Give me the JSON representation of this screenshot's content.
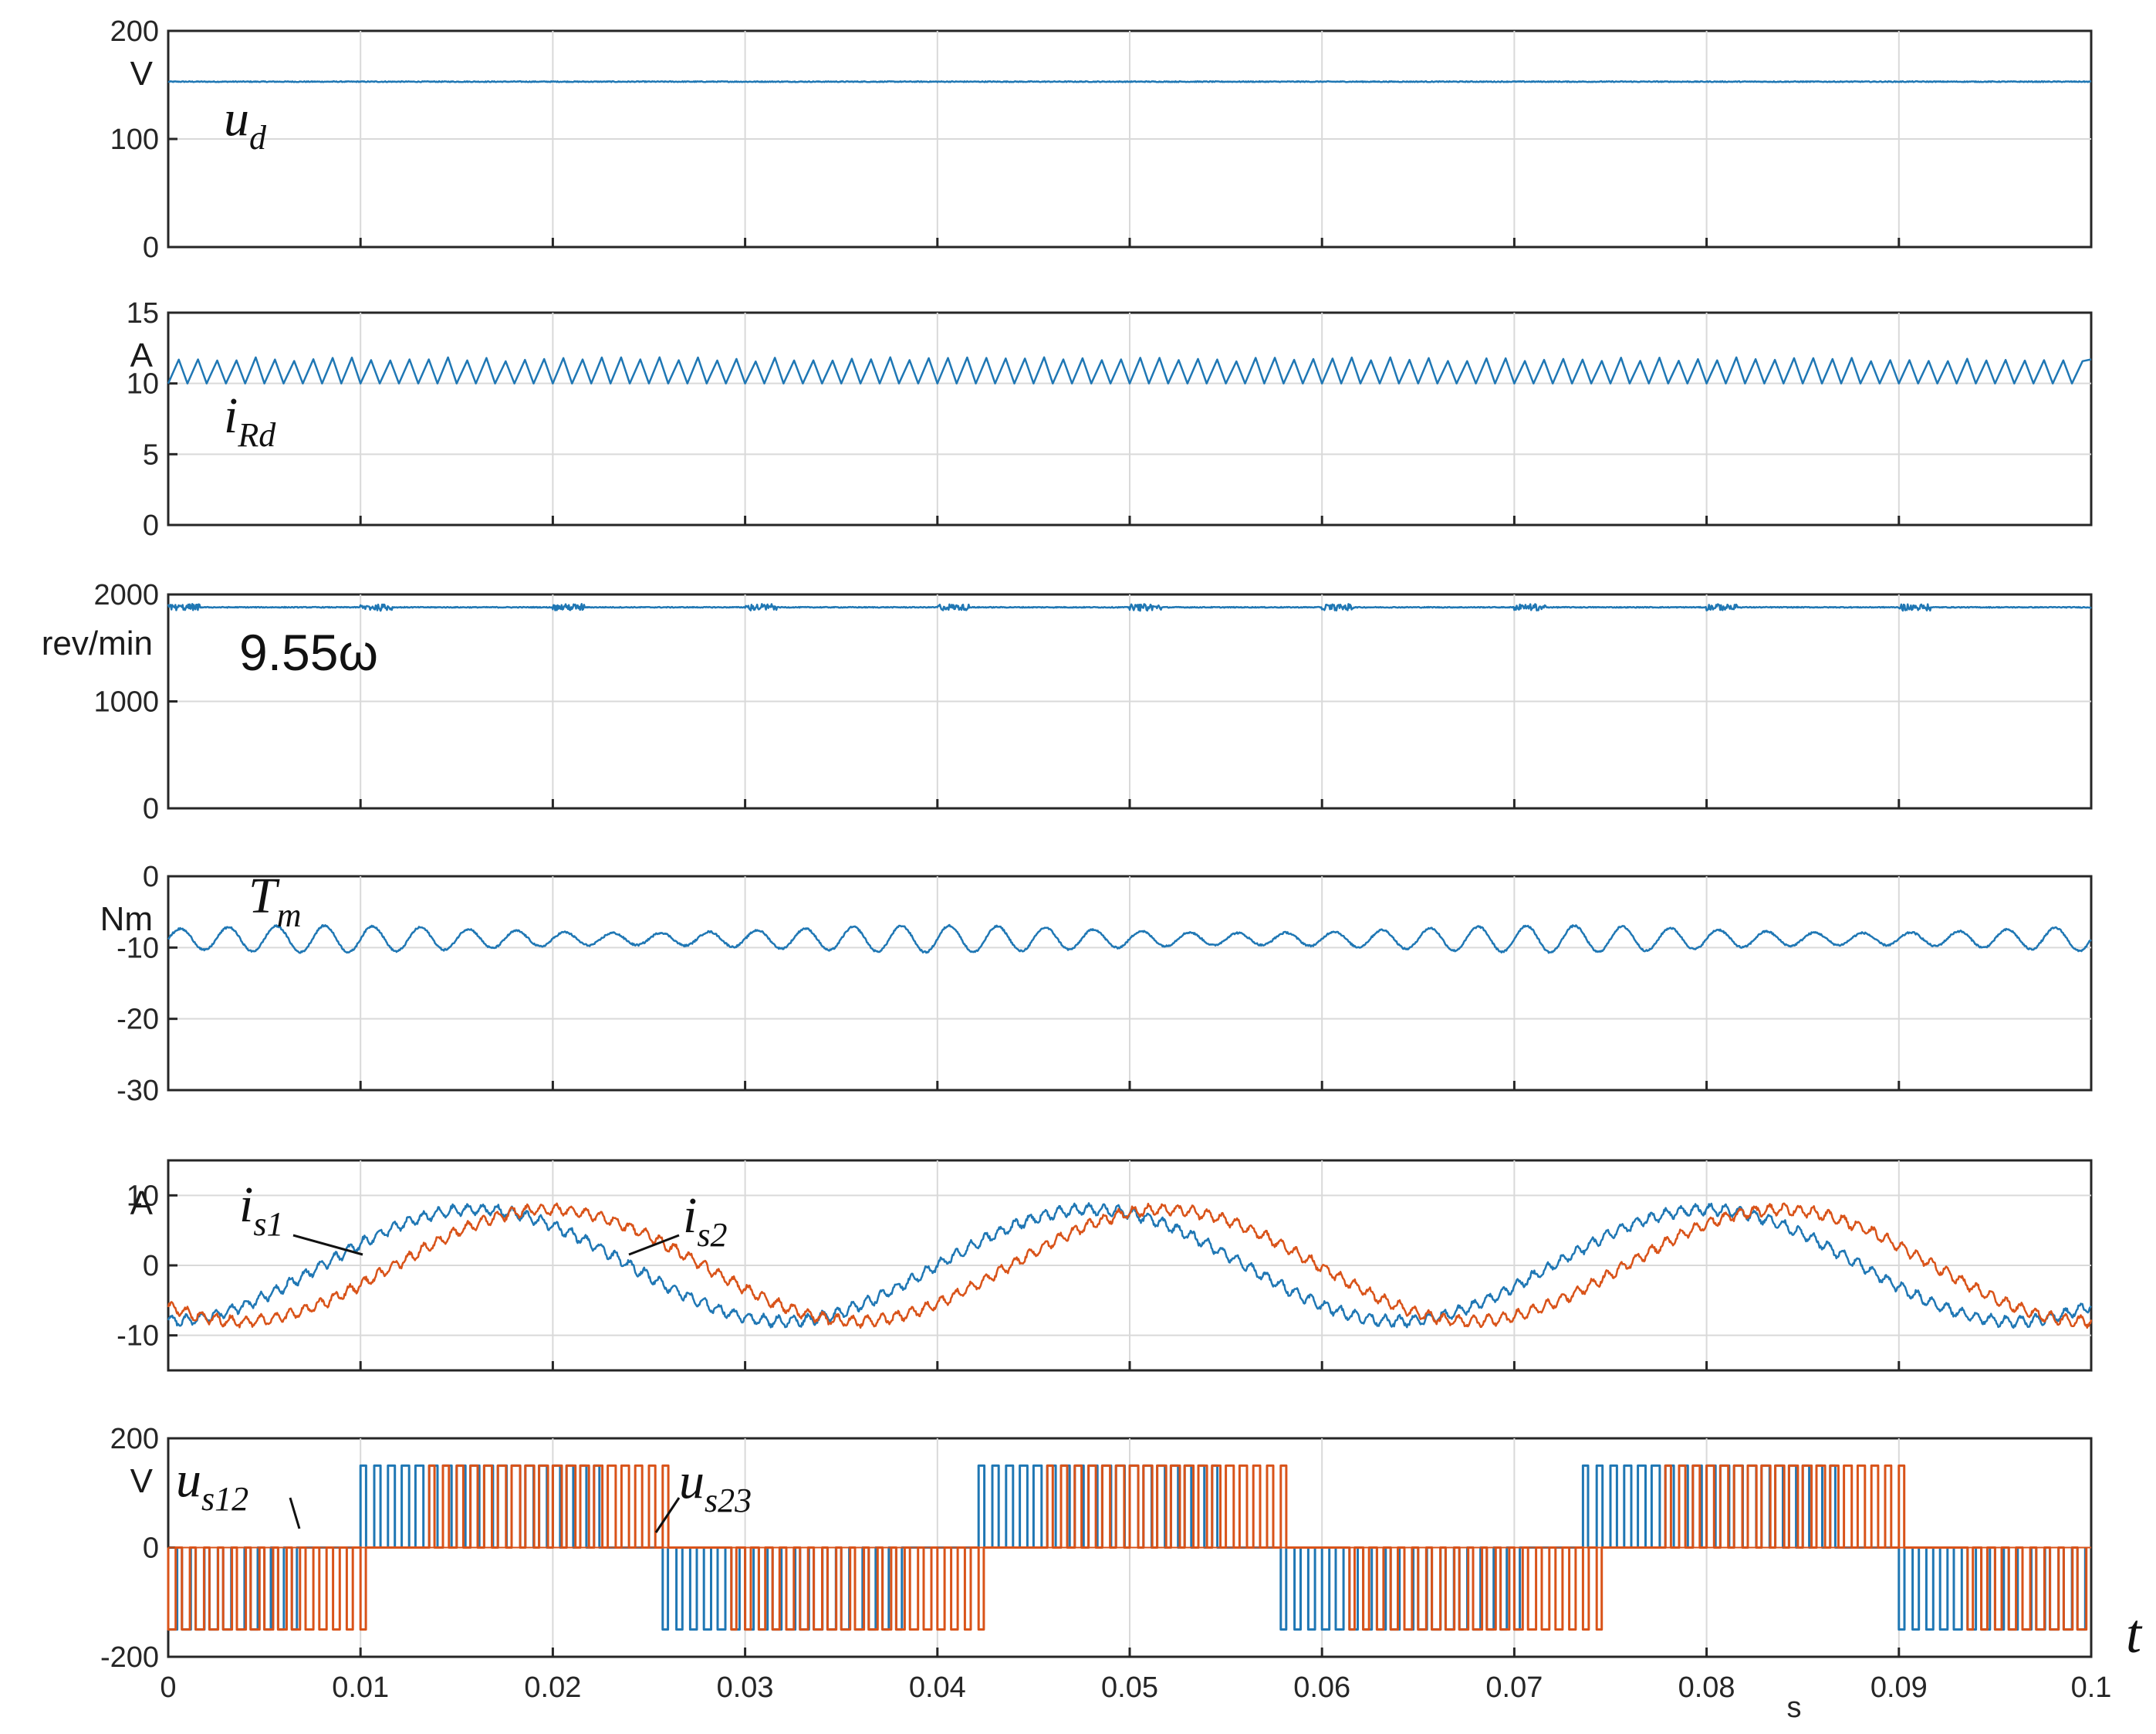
{
  "chart_data": [
    {
      "type": "line",
      "id": "ud",
      "ylabel": "V",
      "ylim": [
        0,
        200
      ],
      "yticks": [
        "200",
        "100",
        "0"
      ],
      "series": [
        {
          "name": "u_d",
          "label": "u",
          "sub": "d",
          "color": "#1f77b4",
          "kind": "const",
          "value": 153
        }
      ],
      "grid": true
    },
    {
      "type": "line",
      "id": "iRd",
      "ylabel": "A",
      "ylim": [
        0,
        15
      ],
      "yticks": [
        "15",
        "10",
        "5",
        "0"
      ],
      "series": [
        {
          "name": "i_Rd",
          "label": "i",
          "sub": "Rd",
          "color": "#1f77b4",
          "kind": "sawtooth",
          "min": 10,
          "max": 11.7,
          "cycles": 100
        }
      ],
      "grid": true
    },
    {
      "type": "line",
      "id": "speed",
      "ylabel": "rev/min",
      "ylim": [
        0,
        2000
      ],
      "yticks": [
        "2000",
        "1000",
        "0"
      ],
      "series": [
        {
          "name": "9.55ω",
          "label": "9.55ω",
          "color": "#1f77b4",
          "kind": "const",
          "value": 1880
        }
      ],
      "grid": true
    },
    {
      "type": "line",
      "id": "Tm",
      "ylabel": "Nm",
      "ylim": [
        -30,
        0
      ],
      "yticks": [
        "0",
        "-10",
        "-20",
        "-30"
      ],
      "series": [
        {
          "name": "T_m",
          "label": "T",
          "sub": "m",
          "color": "#1f77b4",
          "kind": "ripple",
          "mean": -8.8,
          "amp": 1.7,
          "freq": 400
        }
      ],
      "grid": true
    },
    {
      "type": "line",
      "id": "is",
      "ylabel": "A",
      "ylim": [
        -15,
        15
      ],
      "yticks": [
        "10",
        "0",
        "-10"
      ],
      "series": [
        {
          "name": "i_s1",
          "label": "i",
          "sub": "s1",
          "color": "#1f77b4",
          "kind": "sine",
          "amp": 8,
          "freq": 31.25,
          "peak_t": 0.016
        },
        {
          "name": "i_s2",
          "label": "i",
          "sub": "s2",
          "color": "#d95319",
          "kind": "sine",
          "amp": 8,
          "freq": 31.25,
          "peak_t": 0.0198
        }
      ],
      "grid": true
    },
    {
      "type": "line",
      "id": "us",
      "ylabel": "V",
      "ylim": [
        -200,
        200
      ],
      "yticks": [
        "200",
        "0",
        "-200"
      ],
      "xlabel": "s",
      "xticks": [
        "0",
        "0.01",
        "0.02",
        "0.03",
        "0.04",
        "0.05",
        "0.06",
        "0.07",
        "0.08",
        "0.09",
        "0.1"
      ],
      "xlim": [
        0,
        0.1
      ],
      "series": [
        {
          "name": "u_s12",
          "label": "u",
          "sub": "s12",
          "color": "#1f77b4",
          "kind": "pwm",
          "high": 150,
          "low": -150,
          "freq": 31.25,
          "peak_t": 0.016
        },
        {
          "name": "u_s23",
          "label": "u",
          "sub": "s23",
          "color": "#d95319",
          "kind": "pwm",
          "high": 150,
          "low": -150,
          "freq": 31.25,
          "peak_t": 0.0198
        }
      ],
      "grid": true
    }
  ],
  "time_label": "t"
}
